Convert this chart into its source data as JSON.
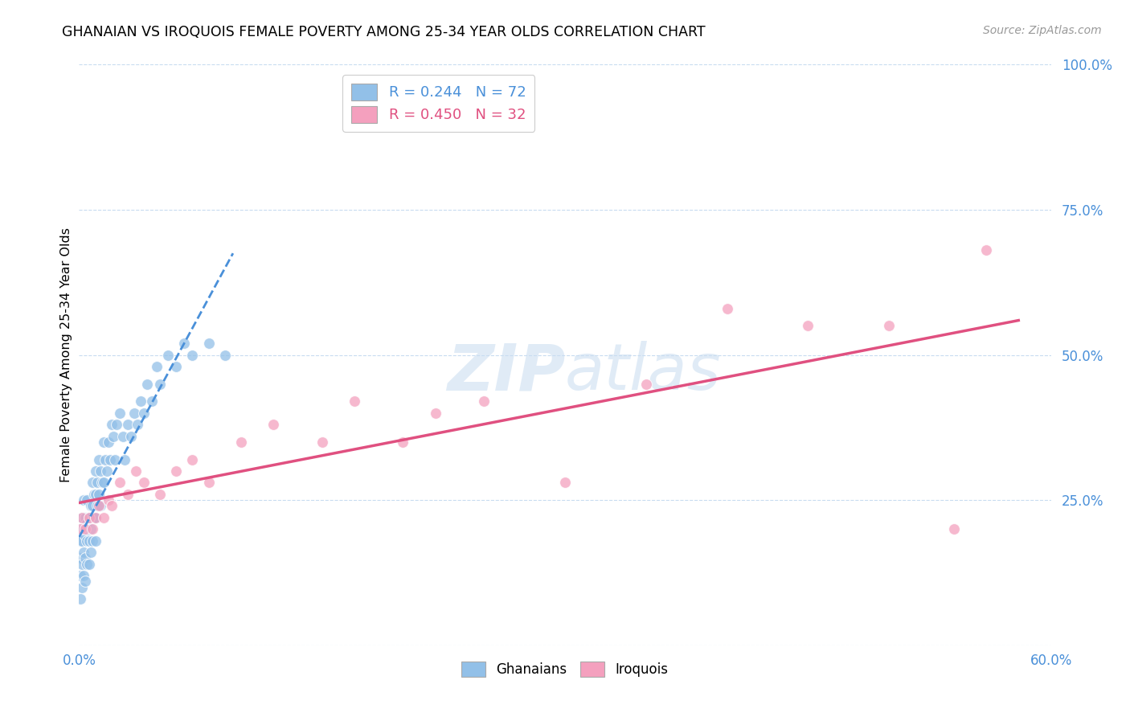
{
  "title": "GHANAIAN VS IROQUOIS FEMALE POVERTY AMONG 25-34 YEAR OLDS CORRELATION CHART",
  "source": "Source: ZipAtlas.com",
  "ylabel": "Female Poverty Among 25-34 Year Olds",
  "xlim": [
    0.0,
    0.6
  ],
  "ylim": [
    0.0,
    1.0
  ],
  "xticks": [
    0.0,
    0.1,
    0.2,
    0.3,
    0.4,
    0.5,
    0.6
  ],
  "xticklabels": [
    "0.0%",
    "",
    "",
    "",
    "",
    "",
    "60.0%"
  ],
  "yticks": [
    0.0,
    0.25,
    0.5,
    0.75,
    1.0
  ],
  "yticklabels": [
    "",
    "25.0%",
    "50.0%",
    "75.0%",
    "100.0%"
  ],
  "legend_blue_label": "R = 0.244   N = 72",
  "legend_pink_label": "R = 0.450   N = 32",
  "blue_color": "#92C0E8",
  "pink_color": "#F4A0BE",
  "trendline_blue_color": "#4A90D9",
  "trendline_pink_color": "#E05080",
  "axis_color": "#4A90D9",
  "grid_color": "#C8DCF0",
  "watermark_color": "#C8DCF0",
  "ghanaians_x": [
    0.001,
    0.001,
    0.001,
    0.001,
    0.001,
    0.002,
    0.002,
    0.002,
    0.002,
    0.003,
    0.003,
    0.003,
    0.003,
    0.004,
    0.004,
    0.004,
    0.004,
    0.005,
    0.005,
    0.005,
    0.005,
    0.006,
    0.006,
    0.006,
    0.007,
    0.007,
    0.007,
    0.008,
    0.008,
    0.008,
    0.009,
    0.009,
    0.01,
    0.01,
    0.01,
    0.01,
    0.011,
    0.011,
    0.012,
    0.012,
    0.013,
    0.013,
    0.014,
    0.015,
    0.015,
    0.016,
    0.017,
    0.018,
    0.019,
    0.02,
    0.021,
    0.022,
    0.023,
    0.025,
    0.027,
    0.028,
    0.03,
    0.032,
    0.034,
    0.036,
    0.038,
    0.04,
    0.042,
    0.045,
    0.048,
    0.05,
    0.055,
    0.06,
    0.065,
    0.07,
    0.08,
    0.09
  ],
  "ghanaians_y": [
    0.2,
    0.18,
    0.15,
    0.12,
    0.08,
    0.22,
    0.18,
    0.14,
    0.1,
    0.25,
    0.2,
    0.16,
    0.12,
    0.22,
    0.19,
    0.15,
    0.11,
    0.25,
    0.21,
    0.18,
    0.14,
    0.22,
    0.18,
    0.14,
    0.24,
    0.2,
    0.16,
    0.28,
    0.24,
    0.18,
    0.26,
    0.22,
    0.3,
    0.26,
    0.22,
    0.18,
    0.28,
    0.24,
    0.32,
    0.26,
    0.3,
    0.24,
    0.28,
    0.35,
    0.28,
    0.32,
    0.3,
    0.35,
    0.32,
    0.38,
    0.36,
    0.32,
    0.38,
    0.4,
    0.36,
    0.32,
    0.38,
    0.36,
    0.4,
    0.38,
    0.42,
    0.4,
    0.45,
    0.42,
    0.48,
    0.45,
    0.5,
    0.48,
    0.52,
    0.5,
    0.52,
    0.5
  ],
  "iroquois_x": [
    0.001,
    0.002,
    0.004,
    0.006,
    0.008,
    0.01,
    0.012,
    0.015,
    0.018,
    0.02,
    0.025,
    0.03,
    0.035,
    0.04,
    0.05,
    0.06,
    0.07,
    0.08,
    0.1,
    0.12,
    0.15,
    0.17,
    0.2,
    0.22,
    0.25,
    0.3,
    0.35,
    0.4,
    0.45,
    0.5,
    0.54,
    0.56
  ],
  "iroquois_y": [
    0.2,
    0.22,
    0.2,
    0.22,
    0.2,
    0.22,
    0.24,
    0.22,
    0.25,
    0.24,
    0.28,
    0.26,
    0.3,
    0.28,
    0.26,
    0.3,
    0.32,
    0.28,
    0.35,
    0.38,
    0.35,
    0.42,
    0.35,
    0.4,
    0.42,
    0.28,
    0.45,
    0.58,
    0.55,
    0.55,
    0.2,
    0.68
  ]
}
